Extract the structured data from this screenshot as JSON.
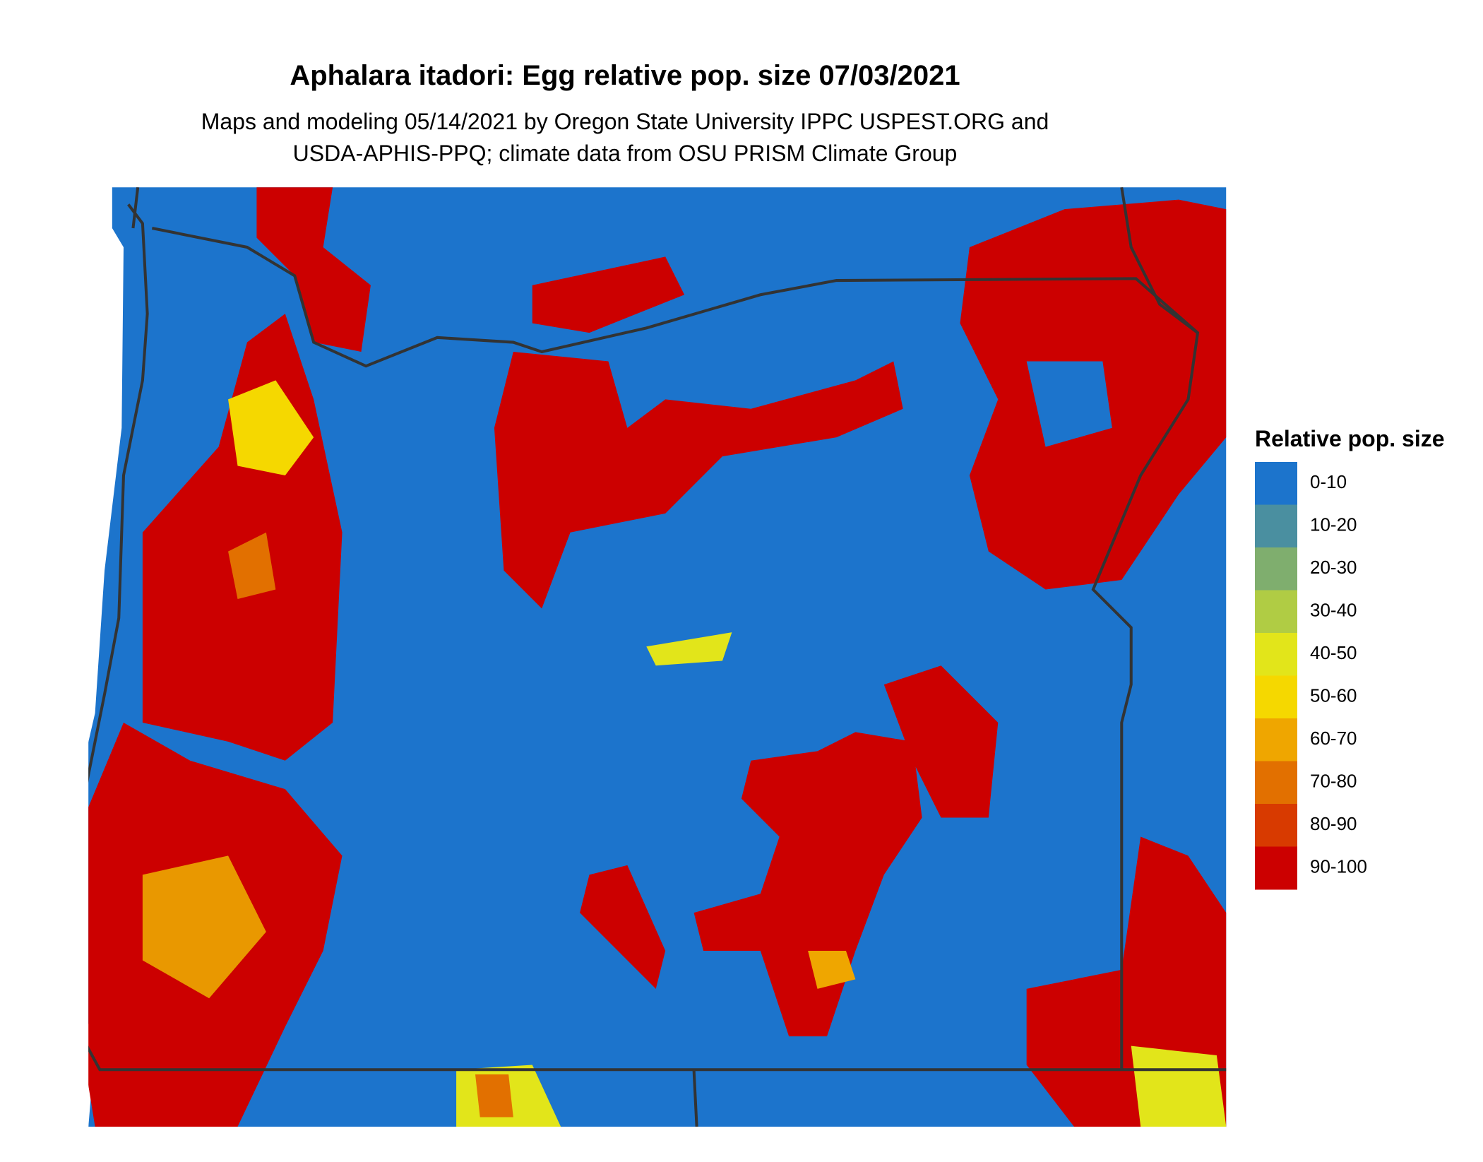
{
  "header": {
    "title": "Aphalara itadori: Egg relative pop. size 07/03/2021",
    "subtitle": [
      "Maps and modeling 05/14/2021 by Oregon State University IPPC USPEST.ORG and",
      "USDA-APHIS-PPQ; climate data from OSU PRISM Climate Group"
    ]
  },
  "legend": {
    "title": "Relative pop. size",
    "items": [
      {
        "label": "0-10",
        "color": "#1c74cc"
      },
      {
        "label": "10-20",
        "color": "#4a8fa0"
      },
      {
        "label": "20-30",
        "color": "#7fae6e"
      },
      {
        "label": "30-40",
        "color": "#b0cc44"
      },
      {
        "label": "40-50",
        "color": "#e2e51a"
      },
      {
        "label": "50-60",
        "color": "#f5d800"
      },
      {
        "label": "60-70",
        "color": "#efa600"
      },
      {
        "label": "70-80",
        "color": "#e27000"
      },
      {
        "label": "80-90",
        "color": "#d83a00"
      },
      {
        "label": "90-100",
        "color": "#cc0000"
      }
    ]
  }
}
